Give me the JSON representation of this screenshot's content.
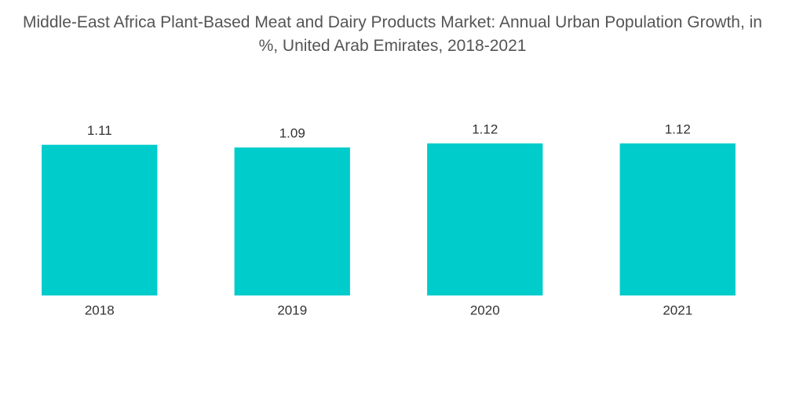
{
  "chart_data": {
    "type": "bar",
    "title": "Middle-East Africa Plant-Based Meat and Dairy Products Market: Annual Urban Population Growth, in %, United Arab Emirates, 2018-2021",
    "categories": [
      "2018",
      "2019",
      "2020",
      "2021"
    ],
    "values": [
      1.11,
      1.09,
      1.12,
      1.12
    ],
    "color": "#00cccc"
  }
}
